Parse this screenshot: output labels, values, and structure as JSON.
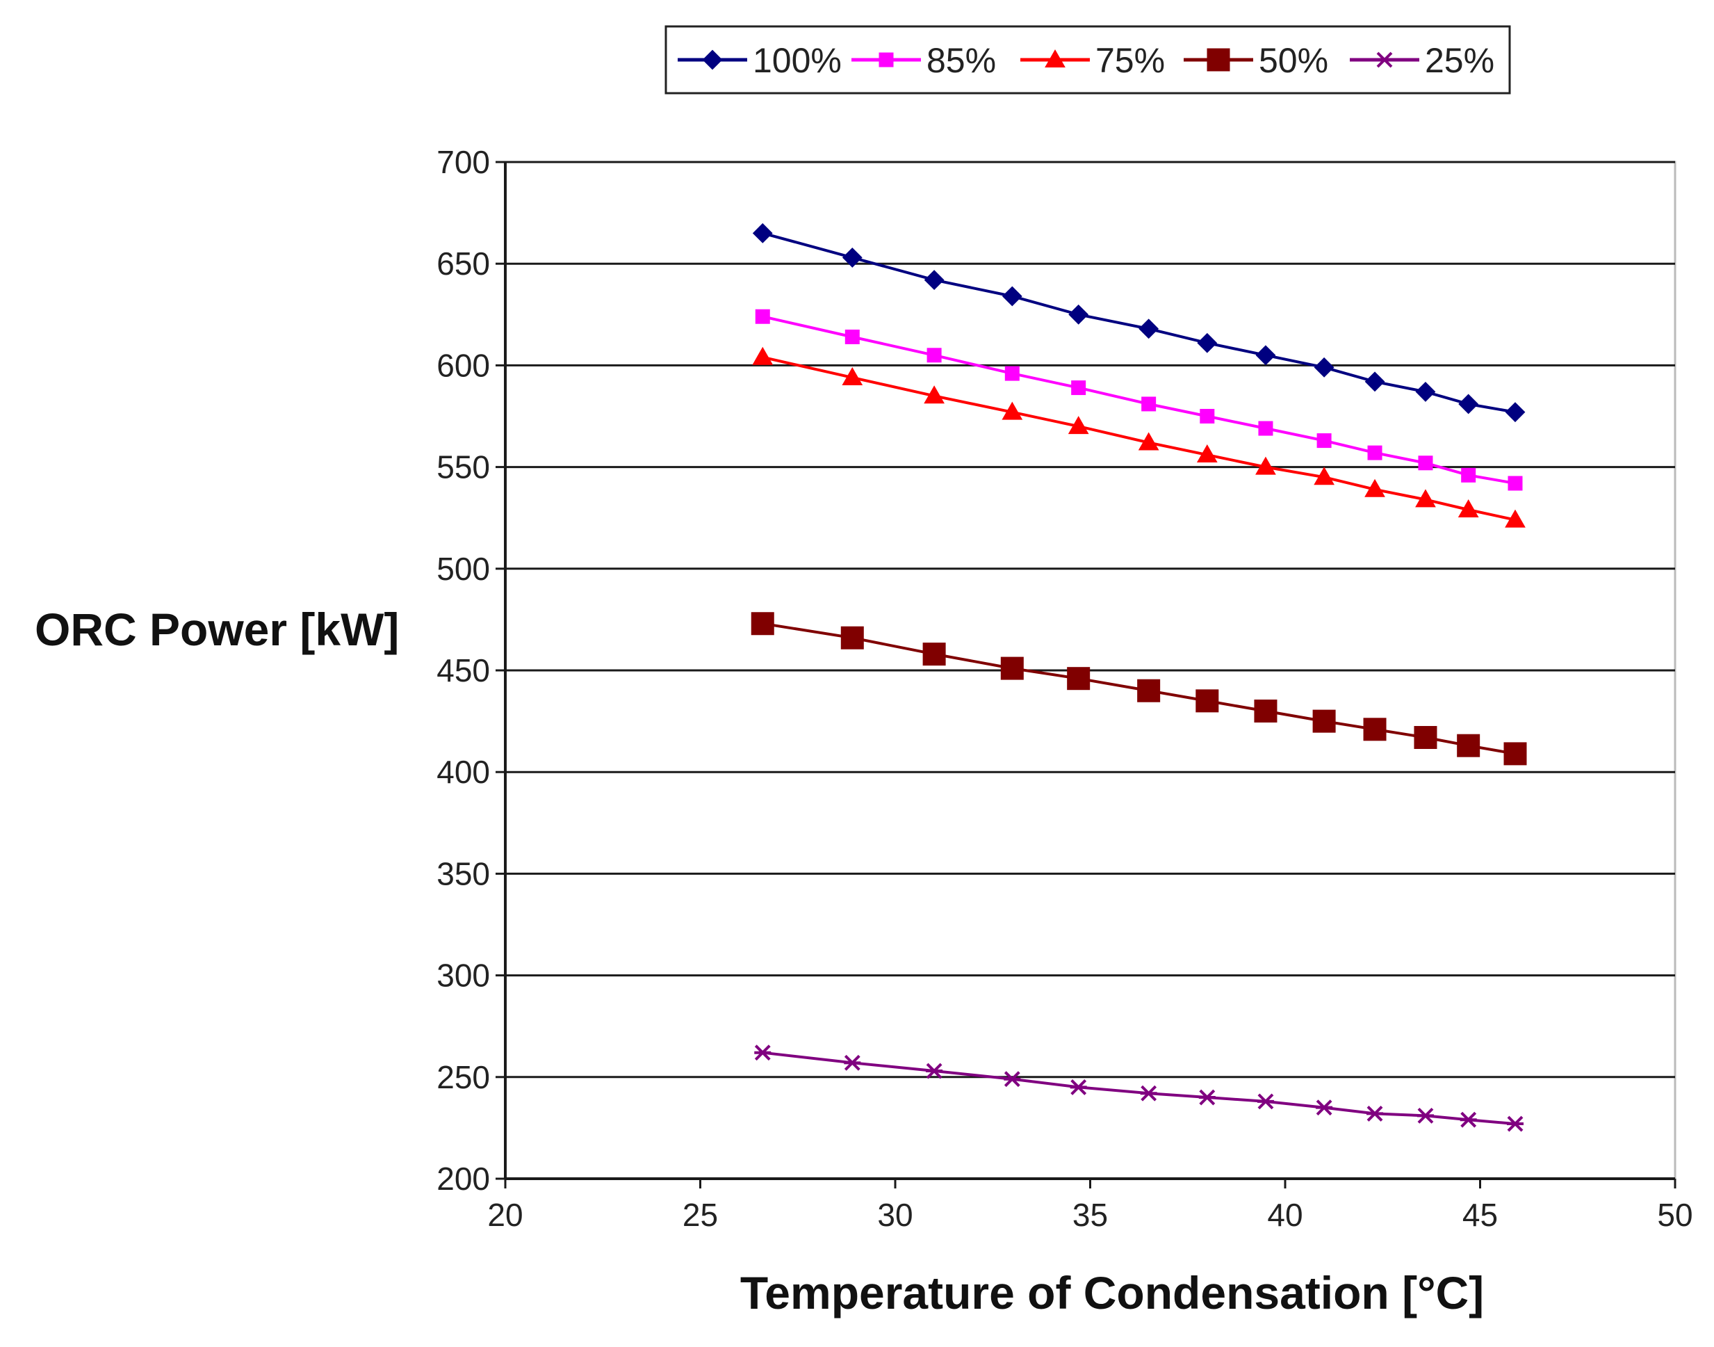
{
  "chart_data": {
    "type": "line",
    "title": "",
    "xlabel": "Temperature of Condensation [°C]",
    "ylabel": "ORC Power [kW]",
    "xlim": [
      20,
      50
    ],
    "ylim": [
      200,
      700
    ],
    "xticks": [
      "20",
      "25",
      "30",
      "35",
      "40",
      "45",
      "50"
    ],
    "yticks": [
      "200",
      "250",
      "300",
      "350",
      "400",
      "450",
      "500",
      "550",
      "600",
      "650",
      "700"
    ],
    "grid": "horizontal",
    "legend_position": "top-center",
    "x": [
      26.6,
      28.9,
      31.0,
      33.0,
      34.7,
      36.5,
      38.0,
      39.5,
      41.0,
      42.3,
      43.6,
      44.7,
      45.9
    ],
    "series": [
      {
        "name": "100%",
        "color": "#000080",
        "marker": "diamond",
        "values": [
          665,
          653,
          642,
          634,
          625,
          618,
          611,
          605,
          599,
          592,
          587,
          581,
          577
        ]
      },
      {
        "name": "85%",
        "color": "#ff00ff",
        "marker": "square-small",
        "values": [
          624,
          614,
          605,
          596,
          589,
          581,
          575,
          569,
          563,
          557,
          552,
          546,
          542
        ]
      },
      {
        "name": "75%",
        "color": "#ff0000",
        "marker": "triangle",
        "values": [
          604,
          594,
          585,
          577,
          570,
          562,
          556,
          550,
          545,
          539,
          534,
          529,
          524
        ]
      },
      {
        "name": "50%",
        "color": "#800000",
        "marker": "square-large",
        "values": [
          473,
          466,
          458,
          451,
          446,
          440,
          435,
          430,
          425,
          421,
          417,
          413,
          409
        ]
      },
      {
        "name": "25%",
        "color": "#800080",
        "marker": "star",
        "values": [
          262,
          257,
          253,
          249,
          245,
          242,
          240,
          238,
          235,
          232,
          231,
          229,
          227
        ]
      }
    ]
  }
}
